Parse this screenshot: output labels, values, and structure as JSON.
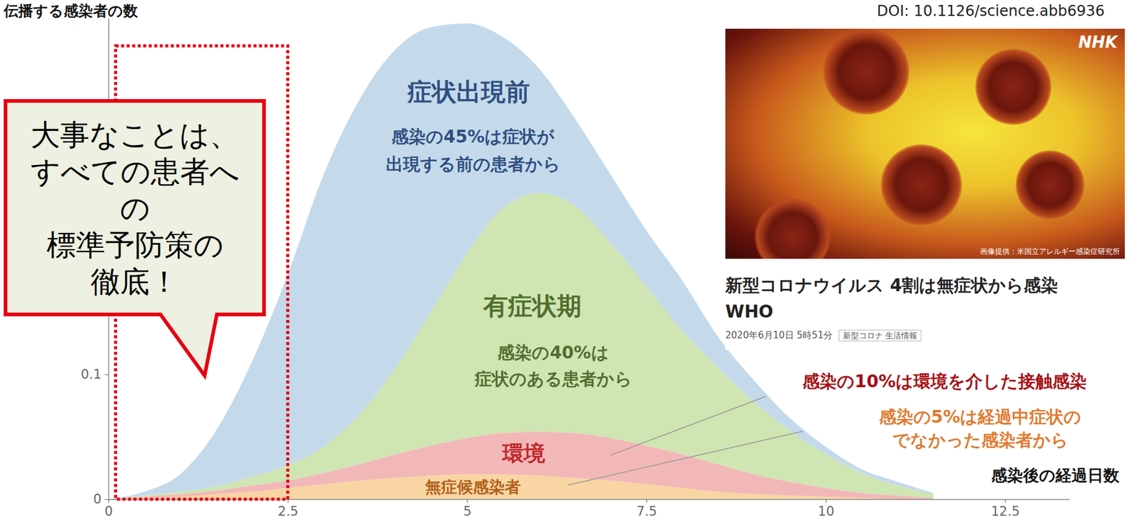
{
  "chart_data": {
    "type": "area",
    "stacked": true,
    "grid": false,
    "y_label": "伝播する感染者の数",
    "x_label": "感染後の経過日数",
    "source": "DOI: 10.1126/science.abb6936",
    "x": [
      0,
      0.5,
      1,
      1.5,
      2,
      2.5,
      3,
      3.5,
      4,
      4.5,
      5,
      5.5,
      6,
      6.5,
      7,
      7.5,
      8,
      8.5,
      9,
      9.5,
      10,
      10.5,
      11,
      11.5
    ],
    "series": [
      {
        "name": "無症候感染者",
        "color": "#f8d5a3",
        "annotation": [
          "感染の5%は経過中症状の",
          "でなかった感染者から"
        ],
        "values": [
          0,
          0.001,
          0.002,
          0.004,
          0.006,
          0.009,
          0.012,
          0.015,
          0.017,
          0.019,
          0.02,
          0.02,
          0.019,
          0.017,
          0.015,
          0.012,
          0.009,
          0.006,
          0.004,
          0.003,
          0.002,
          0.001,
          0,
          0
        ]
      },
      {
        "name": "環境",
        "color": "#f2b8b8",
        "annotation": [
          "感染の10%は環境を介した接触感染"
        ],
        "values": [
          0,
          0.001,
          0.002,
          0.003,
          0.005,
          0.006,
          0.009,
          0.013,
          0.019,
          0.024,
          0.029,
          0.033,
          0.035,
          0.036,
          0.034,
          0.031,
          0.027,
          0.022,
          0.016,
          0.011,
          0.007,
          0.004,
          0.003,
          0.001
        ]
      },
      {
        "name": "有症状期",
        "color": "#cfe5b2",
        "annotation": [
          "感染の40%は",
          "症状のある患者から"
        ],
        "values": [
          0,
          0.001,
          0.002,
          0.003,
          0.007,
          0.012,
          0.021,
          0.04,
          0.069,
          0.107,
          0.148,
          0.18,
          0.191,
          0.182,
          0.156,
          0.127,
          0.099,
          0.077,
          0.058,
          0.041,
          0.027,
          0.016,
          0.008,
          0.003
        ]
      },
      {
        "name": "症状出現前",
        "color": "#c4daeb",
        "annotation": [
          "感染の45%は症状が",
          "出現する前の患者から"
        ],
        "values": [
          0,
          0.003,
          0.014,
          0.045,
          0.092,
          0.153,
          0.218,
          0.252,
          0.255,
          0.228,
          0.184,
          0.137,
          0.1,
          0.07,
          0.055,
          0.045,
          0.04,
          0.025,
          0.017,
          0.01,
          0.006,
          0.003,
          0.003,
          0.001
        ]
      }
    ],
    "xlim": [
      0,
      13.4
    ],
    "xticks": [
      0,
      2.5,
      5,
      7.5,
      10,
      12.5
    ],
    "ylim": [
      0,
      0.385
    ],
    "yticks": [
      0,
      0.1
    ],
    "highlight": {
      "x": [
        0.1,
        2.5
      ],
      "y": [
        0,
        0.363
      ],
      "color": "#e60012"
    }
  },
  "callout": {
    "lines": [
      "大事なことは、",
      "すべての患者へ",
      "の",
      "標準予防策の",
      "徹底！"
    ],
    "color": "#e60012"
  },
  "news": {
    "logo": "NHK",
    "credit": "画像提供：米国立アレルギー感染症研究所",
    "headline": [
      "新型コロナウイルス 4割は無症状から感染",
      "WHO"
    ],
    "date": "2020年6月10日 5時51分",
    "tag": "新型コロナ 生活情報"
  }
}
